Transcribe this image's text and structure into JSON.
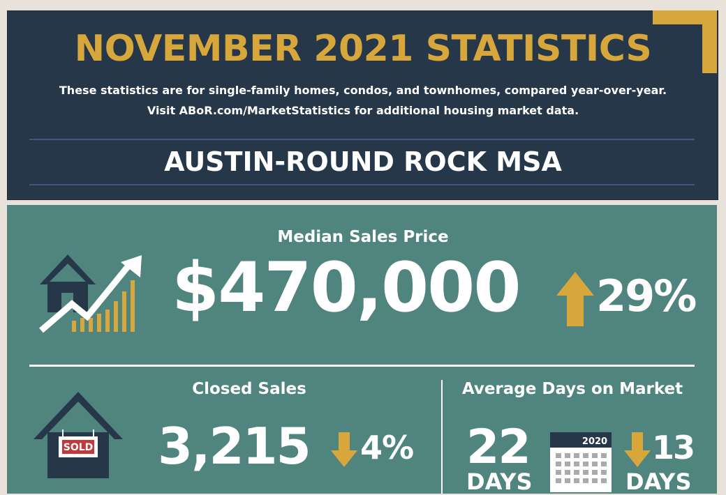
{
  "header": {
    "title": "NOVEMBER 2021 STATISTICS",
    "subtitle_line1": "These statistics are for single-family homes, condos, and townhomes, compared year-over-year.",
    "subtitle_line2": "Visit ABoR.com/MarketStatistics for additional housing market data.",
    "region": "AUSTIN-ROUND ROCK MSA"
  },
  "median_sales_price": {
    "label": "Median Sales Price",
    "value": "$470,000",
    "change": "29%",
    "direction": "up"
  },
  "closed_sales": {
    "label": "Closed Sales",
    "value": "3,215",
    "change": "4%",
    "direction": "down",
    "sign_text": "SOLD"
  },
  "average_days_on_market": {
    "label": "Average Days on Market",
    "value": "22",
    "unit": "DAYS",
    "calendar_year": "2020",
    "change": "13",
    "change_unit": "DAYS",
    "direction": "down"
  },
  "colors": {
    "navy": "#263749",
    "gold": "#d8a73c",
    "teal": "#4f847f",
    "white": "#ffffff"
  },
  "icons": [
    "house-growth-chart-icon",
    "arrow-up-icon",
    "house-sold-icon",
    "arrow-down-icon",
    "calendar-icon"
  ]
}
